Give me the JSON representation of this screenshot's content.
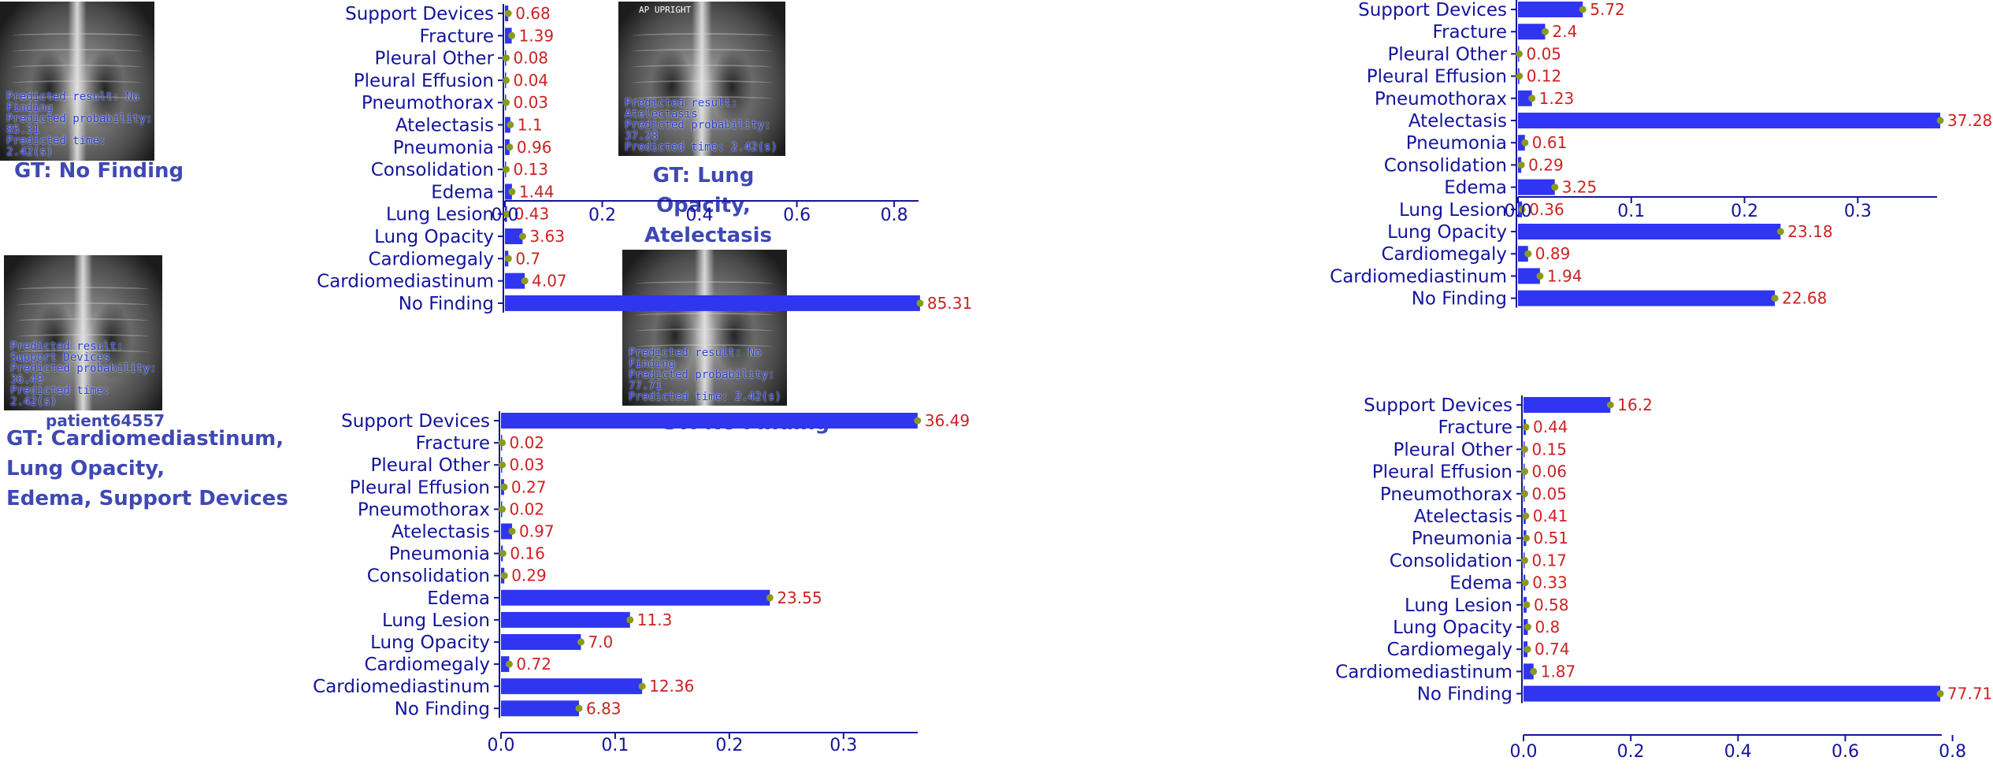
{
  "chart_data": [
    {
      "type": "bar",
      "orientation": "horizontal",
      "categories": [
        "Support Devices",
        "Fracture",
        "Pleural Other",
        "Pleural Effusion",
        "Pneumothorax",
        "Atelectasis",
        "Pneumonia",
        "Consolidation",
        "Edema",
        "Lung Lesion",
        "Lung Opacity",
        "Cardiomegaly",
        "Cardiomediastinum",
        "No Finding"
      ],
      "values": [
        0.0068,
        0.0139,
        0.0008,
        0.0004,
        0.0003,
        0.011,
        0.0096,
        0.0013,
        0.0144,
        0.0043,
        0.0363,
        0.007,
        0.0407,
        0.8531
      ],
      "value_labels": [
        "0.68",
        "1.39",
        "0.08",
        "0.04",
        "0.03",
        "1.1",
        "0.96",
        "0.13",
        "1.44",
        "0.43",
        "3.63",
        "0.7",
        "4.07",
        "85.31"
      ],
      "xticks": [
        "0.0",
        "0.2",
        "0.4",
        "0.6",
        "0.8"
      ],
      "xlim": [
        0,
        0.85
      ],
      "image_overlay": [
        "Predicted result: No Finding",
        "Predicted probability: 85.31",
        "Predicted time: 2.42(s)"
      ],
      "image_tag": "",
      "patient_id": "",
      "gt_text": "GT: No Finding"
    },
    {
      "type": "bar",
      "orientation": "horizontal",
      "categories": [
        "Support Devices",
        "Fracture",
        "Pleural Other",
        "Pleural Effusion",
        "Pneumothorax",
        "Atelectasis",
        "Pneumonia",
        "Consolidation",
        "Edema",
        "Lung Lesion",
        "Lung Opacity",
        "Cardiomegaly",
        "Cardiomediastinum",
        "No Finding"
      ],
      "values": [
        0.0572,
        0.024,
        0.0005,
        0.0012,
        0.0123,
        0.3728,
        0.0061,
        0.0029,
        0.0325,
        0.0036,
        0.2318,
        0.0089,
        0.0194,
        0.2268
      ],
      "value_labels": [
        "5.72",
        "2.4",
        "0.05",
        "0.12",
        "1.23",
        "37.28",
        "0.61",
        "0.29",
        "3.25",
        "0.36",
        "23.18",
        "0.89",
        "1.94",
        "22.68"
      ],
      "xticks": [
        "0.0",
        "0.1",
        "0.2",
        "0.3"
      ],
      "xlim": [
        0,
        0.37
      ],
      "image_overlay": [
        "Predicted result: Atelectasis",
        "Predicted probability: 37.28",
        "Predicted time: 2.42(s)"
      ],
      "image_tag": "AP UPRIGHT",
      "patient_id": "",
      "gt_text": "GT: Lung Opacity,\nAtelectasis"
    },
    {
      "type": "bar",
      "orientation": "horizontal",
      "categories": [
        "Support Devices",
        "Fracture",
        "Pleural Other",
        "Pleural Effusion",
        "Pneumothorax",
        "Atelectasis",
        "Pneumonia",
        "Consolidation",
        "Edema",
        "Lung Lesion",
        "Lung Opacity",
        "Cardiomegaly",
        "Cardiomediastinum",
        "No Finding"
      ],
      "values": [
        0.3649,
        0.0002,
        0.0003,
        0.0027,
        0.0002,
        0.0097,
        0.0016,
        0.0029,
        0.2355,
        0.113,
        0.07,
        0.0072,
        0.1236,
        0.0683
      ],
      "value_labels": [
        "36.49",
        "0.02",
        "0.03",
        "0.27",
        "0.02",
        "0.97",
        "0.16",
        "0.29",
        "23.55",
        "11.3",
        "7.0",
        "0.72",
        "12.36",
        "6.83"
      ],
      "xticks": [
        "0.0",
        "0.1",
        "0.2",
        "0.3"
      ],
      "xlim": [
        0,
        0.365
      ],
      "image_overlay": [
        "Predicted result: Support Devices",
        "Predicted probability: 36.49",
        "Predicted time: 2.42(s)"
      ],
      "image_tag": "",
      "patient_id": "patient64557",
      "gt_text": "GT: Cardiomediastinum,\n    Lung Opacity,\n    Edema,  Support Devices"
    },
    {
      "type": "bar",
      "orientation": "horizontal",
      "categories": [
        "Support Devices",
        "Fracture",
        "Pleural Other",
        "Pleural Effusion",
        "Pneumothorax",
        "Atelectasis",
        "Pneumonia",
        "Consolidation",
        "Edema",
        "Lung Lesion",
        "Lung Opacity",
        "Cardiomegaly",
        "Cardiomediastinum",
        "No Finding"
      ],
      "values": [
        0.162,
        0.0044,
        0.0015,
        0.0006,
        0.0005,
        0.0041,
        0.0051,
        0.0017,
        0.0033,
        0.0058,
        0.008,
        0.0074,
        0.0187,
        0.7771
      ],
      "value_labels": [
        "16.2",
        "0.44",
        "0.15",
        "0.06",
        "0.05",
        "0.41",
        "0.51",
        "0.17",
        "0.33",
        "0.58",
        "0.8",
        "0.74",
        "1.87",
        "77.71"
      ],
      "xticks": [
        "0.0",
        "0.2",
        "0.4",
        "0.6",
        "0.8"
      ],
      "xlim": [
        0,
        0.78
      ],
      "image_overlay": [
        "Predicted result: No Finding",
        "Predicted probability: 77.71",
        "Predicted time: 2.42(s)"
      ],
      "image_tag": "",
      "patient_id": "",
      "gt_text": "GT: No Finding"
    }
  ],
  "colors": {
    "bar": "#2f35f0",
    "marker": "#8a9a1e",
    "value_text": "#cc2222",
    "label_text": "#14149b",
    "gt_text": "#3f49b3"
  }
}
